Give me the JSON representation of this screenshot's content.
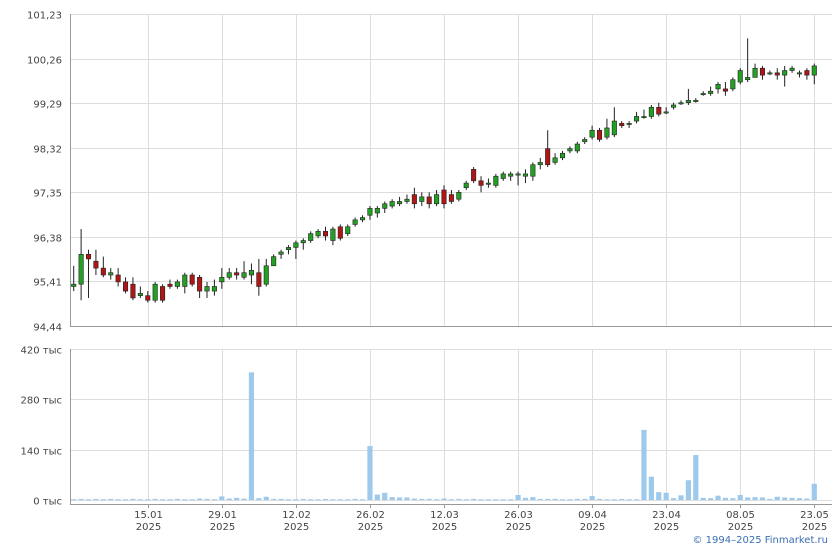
{
  "copyright": "© 1994–2025 Finmarket.ru",
  "colors": {
    "up": "#22a022",
    "down": "#b01616",
    "wick": "#222222",
    "volume": "#9dc9ec",
    "grid": "#dddddd",
    "axis": "#999999",
    "copyright": "#3a6fb0"
  },
  "chart_data": [
    {
      "type": "candlestick",
      "title": "",
      "ylim": [
        94.44,
        101.23
      ],
      "y_ticks": [
        "101,23",
        "100,26",
        "99,29",
        "98,32",
        "97,35",
        "96,38",
        "95,41",
        "94,44"
      ],
      "y_tick_values": [
        101.23,
        100.26,
        99.29,
        98.32,
        97.35,
        96.38,
        95.41,
        94.44
      ],
      "grid": true,
      "x_ticks": [
        {
          "day": 10,
          "line1": "15.01",
          "line2": "2025"
        },
        {
          "day": 20,
          "line1": "29.01",
          "line2": "2025"
        },
        {
          "day": 30,
          "line1": "12.02",
          "line2": "2025"
        },
        {
          "day": 40,
          "line1": "26.02",
          "line2": "2025"
        },
        {
          "day": 50,
          "line1": "12.03",
          "line2": "2025"
        },
        {
          "day": 60,
          "line1": "26.03",
          "line2": "2025"
        },
        {
          "day": 70,
          "line1": "09.04",
          "line2": "2025"
        },
        {
          "day": 80,
          "line1": "23.04",
          "line2": "2025"
        },
        {
          "day": 90,
          "line1": "08.05",
          "line2": "2025"
        },
        {
          "day": 100,
          "line1": "23.05",
          "line2": "2025"
        }
      ],
      "x_range": [
        -0.5,
        100.5
      ],
      "candles": [
        [
          95.3,
          95.35,
          95.75,
          95.2
        ],
        [
          95.35,
          96.0,
          96.55,
          95.0
        ],
        [
          96.0,
          95.9,
          96.1,
          95.05
        ],
        [
          95.85,
          95.7,
          96.1,
          95.55
        ],
        [
          95.7,
          95.55,
          95.95,
          95.5
        ],
        [
          95.55,
          95.6,
          95.7,
          95.45
        ],
        [
          95.55,
          95.4,
          95.7,
          95.3
        ],
        [
          95.4,
          95.2,
          95.5,
          95.15
        ],
        [
          95.35,
          95.05,
          95.5,
          95.0
        ],
        [
          95.1,
          95.15,
          95.3,
          95.05
        ],
        [
          95.1,
          95.0,
          95.2,
          94.95
        ],
        [
          95.0,
          95.35,
          95.4,
          94.95
        ],
        [
          95.3,
          95.0,
          95.35,
          94.95
        ],
        [
          95.35,
          95.3,
          95.45,
          95.25
        ],
        [
          95.3,
          95.4,
          95.45,
          95.25
        ],
        [
          95.3,
          95.55,
          95.6,
          95.15
        ],
        [
          95.55,
          95.35,
          95.6,
          95.3
        ],
        [
          95.5,
          95.2,
          95.55,
          95.05
        ],
        [
          95.2,
          95.3,
          95.4,
          95.05
        ],
        [
          95.2,
          95.3,
          95.45,
          95.1
        ],
        [
          95.4,
          95.5,
          95.7,
          95.25
        ],
        [
          95.5,
          95.6,
          95.7,
          95.45
        ],
        [
          95.6,
          95.55,
          95.7,
          95.45
        ],
        [
          95.5,
          95.6,
          95.85,
          95.45
        ],
        [
          95.55,
          95.65,
          95.8,
          95.35
        ],
        [
          95.6,
          95.3,
          95.9,
          95.1
        ],
        [
          95.35,
          95.75,
          95.9,
          95.3
        ],
        [
          95.75,
          95.95,
          96.0,
          95.75
        ],
        [
          96.0,
          96.05,
          96.1,
          95.9
        ],
        [
          96.1,
          96.15,
          96.2,
          96.0
        ],
        [
          96.15,
          96.25,
          96.3,
          95.9
        ],
        [
          96.25,
          96.3,
          96.35,
          96.1
        ],
        [
          96.3,
          96.45,
          96.5,
          96.25
        ],
        [
          96.4,
          96.5,
          96.55,
          96.35
        ],
        [
          96.5,
          96.4,
          96.6,
          96.3
        ],
        [
          96.3,
          96.55,
          96.6,
          96.2
        ],
        [
          96.6,
          96.35,
          96.65,
          96.3
        ],
        [
          96.45,
          96.6,
          96.65,
          96.4
        ],
        [
          96.65,
          96.75,
          96.8,
          96.6
        ],
        [
          96.75,
          96.8,
          96.85,
          96.7
        ],
        [
          96.85,
          97.0,
          97.05,
          96.75
        ],
        [
          96.9,
          97.0,
          97.05,
          96.8
        ],
        [
          97.0,
          97.1,
          97.15,
          96.9
        ],
        [
          97.05,
          97.15,
          97.2,
          97.0
        ],
        [
          97.1,
          97.15,
          97.25,
          97.05
        ],
        [
          97.15,
          97.2,
          97.3,
          97.1
        ],
        [
          97.3,
          97.1,
          97.45,
          97.0
        ],
        [
          97.15,
          97.25,
          97.35,
          97.05
        ],
        [
          97.25,
          97.1,
          97.35,
          97.0
        ],
        [
          97.1,
          97.3,
          97.4,
          97.05
        ],
        [
          97.4,
          97.1,
          97.5,
          97.0
        ],
        [
          97.3,
          97.15,
          97.4,
          97.1
        ],
        [
          97.2,
          97.35,
          97.4,
          97.15
        ],
        [
          97.45,
          97.55,
          97.6,
          97.4
        ],
        [
          97.85,
          97.6,
          97.9,
          97.55
        ],
        [
          97.6,
          97.5,
          97.7,
          97.35
        ],
        [
          97.55,
          97.55,
          97.65,
          97.45
        ],
        [
          97.5,
          97.7,
          97.75,
          97.45
        ],
        [
          97.65,
          97.75,
          97.8,
          97.6
        ],
        [
          97.7,
          97.75,
          97.8,
          97.6
        ],
        [
          97.75,
          97.75,
          97.8,
          97.5
        ],
        [
          97.7,
          97.75,
          97.85,
          97.55
        ],
        [
          97.7,
          97.95,
          98.0,
          97.6
        ],
        [
          97.95,
          98.0,
          98.1,
          97.85
        ],
        [
          98.3,
          97.95,
          98.7,
          97.9
        ],
        [
          98.0,
          98.1,
          98.2,
          97.95
        ],
        [
          98.1,
          98.2,
          98.25,
          98.05
        ],
        [
          98.25,
          98.3,
          98.35,
          98.2
        ],
        [
          98.25,
          98.4,
          98.45,
          98.2
        ],
        [
          98.45,
          98.5,
          98.55,
          98.4
        ],
        [
          98.55,
          98.7,
          98.8,
          98.5
        ],
        [
          98.7,
          98.5,
          98.75,
          98.45
        ],
        [
          98.55,
          98.75,
          98.95,
          98.5
        ],
        [
          98.6,
          98.9,
          99.2,
          98.55
        ],
        [
          98.85,
          98.8,
          98.9,
          98.75
        ],
        [
          98.85,
          98.85,
          98.9,
          98.75
        ],
        [
          98.9,
          99.0,
          99.1,
          98.85
        ],
        [
          99.0,
          99.0,
          99.15,
          98.95
        ],
        [
          99.0,
          99.2,
          99.25,
          98.95
        ],
        [
          99.2,
          99.05,
          99.3,
          99.0
        ],
        [
          99.1,
          99.1,
          99.2,
          99.05
        ],
        [
          99.2,
          99.25,
          99.3,
          99.15
        ],
        [
          99.3,
          99.3,
          99.35,
          99.25
        ],
        [
          99.3,
          99.35,
          99.6,
          99.25
        ],
        [
          99.35,
          99.35,
          99.4,
          99.3
        ],
        [
          99.5,
          99.5,
          99.55,
          99.45
        ],
        [
          99.5,
          99.55,
          99.65,
          99.45
        ],
        [
          99.6,
          99.7,
          99.75,
          99.5
        ],
        [
          99.6,
          99.55,
          99.75,
          99.45
        ],
        [
          99.6,
          99.8,
          99.85,
          99.55
        ],
        [
          99.75,
          100.0,
          100.05,
          99.7
        ],
        [
          99.8,
          99.85,
          100.7,
          99.75
        ],
        [
          99.85,
          100.05,
          100.15,
          99.85
        ],
        [
          100.05,
          99.9,
          100.1,
          99.8
        ],
        [
          99.95,
          99.95,
          100.0,
          99.9
        ],
        [
          99.95,
          99.9,
          100.05,
          99.8
        ],
        [
          99.9,
          100.0,
          100.1,
          99.65
        ],
        [
          100.0,
          100.05,
          100.1,
          99.95
        ],
        [
          99.95,
          99.95,
          100.0,
          99.85
        ],
        [
          100.0,
          99.9,
          100.05,
          99.8
        ],
        [
          99.9,
          100.1,
          100.15,
          99.7
        ]
      ]
    },
    {
      "type": "bar",
      "title": "",
      "ylim": [
        0,
        420
      ],
      "y_ticks": [
        "420 тыс",
        "280 тыс",
        "140 тыс",
        "0 тыс"
      ],
      "y_tick_values": [
        420,
        280,
        140,
        0
      ],
      "unit": "тыс",
      "grid": true,
      "values": [
        2,
        3,
        2,
        3,
        2,
        3,
        2,
        2,
        3,
        2,
        2,
        3,
        2,
        2,
        3,
        2,
        2,
        4,
        3,
        2,
        10,
        4,
        6,
        4,
        355,
        5,
        9,
        3,
        3,
        2,
        2,
        3,
        2,
        2,
        3,
        2,
        2,
        2,
        3,
        2,
        150,
        15,
        20,
        8,
        7,
        7,
        4,
        3,
        3,
        2,
        4,
        2,
        3,
        2,
        3,
        2,
        2,
        2,
        2,
        2,
        14,
        6,
        8,
        3,
        3,
        3,
        2,
        2,
        3,
        3,
        11,
        3,
        2,
        2,
        3,
        2,
        2,
        195,
        65,
        22,
        20,
        5,
        13,
        55,
        125,
        6,
        5,
        12,
        6,
        5,
        14,
        7,
        8,
        7,
        3,
        9,
        7,
        6,
        5,
        4,
        45
      ]
    }
  ]
}
